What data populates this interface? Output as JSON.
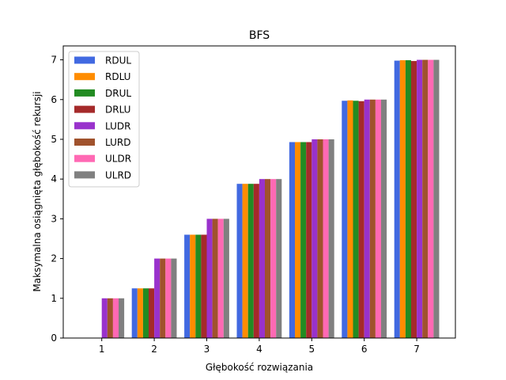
{
  "chart_data": {
    "type": "bar",
    "title": "BFS",
    "xlabel": "Głębokość rozwiązania",
    "ylabel": "Maksymalna osiągnięta głębokość rekursji",
    "categories": [
      "1",
      "2",
      "3",
      "4",
      "5",
      "6",
      "7"
    ],
    "ylim": [
      0,
      7.35
    ],
    "yticks": [
      0,
      1,
      2,
      3,
      4,
      5,
      6,
      7
    ],
    "legend_position": "top-left",
    "series": [
      {
        "name": "RDUL",
        "color": "#4169e1",
        "values": [
          0,
          1.25,
          2.6,
          3.88,
          4.93,
          5.97,
          6.98
        ]
      },
      {
        "name": "RDLU",
        "color": "#ff8c00",
        "values": [
          0,
          1.25,
          2.6,
          3.88,
          4.93,
          5.98,
          6.99
        ]
      },
      {
        "name": "DRUL",
        "color": "#228b22",
        "values": [
          0,
          1.25,
          2.6,
          3.88,
          4.93,
          5.97,
          6.99
        ]
      },
      {
        "name": "DRLU",
        "color": "#a52a2a",
        "values": [
          0,
          1.25,
          2.6,
          3.88,
          4.93,
          5.96,
          6.97
        ]
      },
      {
        "name": "LUDR",
        "color": "#9932cc",
        "values": [
          1.0,
          2.0,
          3.0,
          4.0,
          5.0,
          6.0,
          7.0
        ]
      },
      {
        "name": "LURD",
        "color": "#a0522d",
        "values": [
          1.0,
          2.0,
          3.0,
          4.0,
          5.0,
          6.0,
          7.0
        ]
      },
      {
        "name": "ULDR",
        "color": "#ff69b4",
        "values": [
          1.0,
          2.0,
          3.0,
          4.0,
          5.0,
          6.0,
          7.0
        ]
      },
      {
        "name": "ULRD",
        "color": "#808080",
        "values": [
          1.0,
          2.0,
          3.0,
          4.0,
          5.0,
          6.0,
          7.0
        ]
      }
    ]
  }
}
